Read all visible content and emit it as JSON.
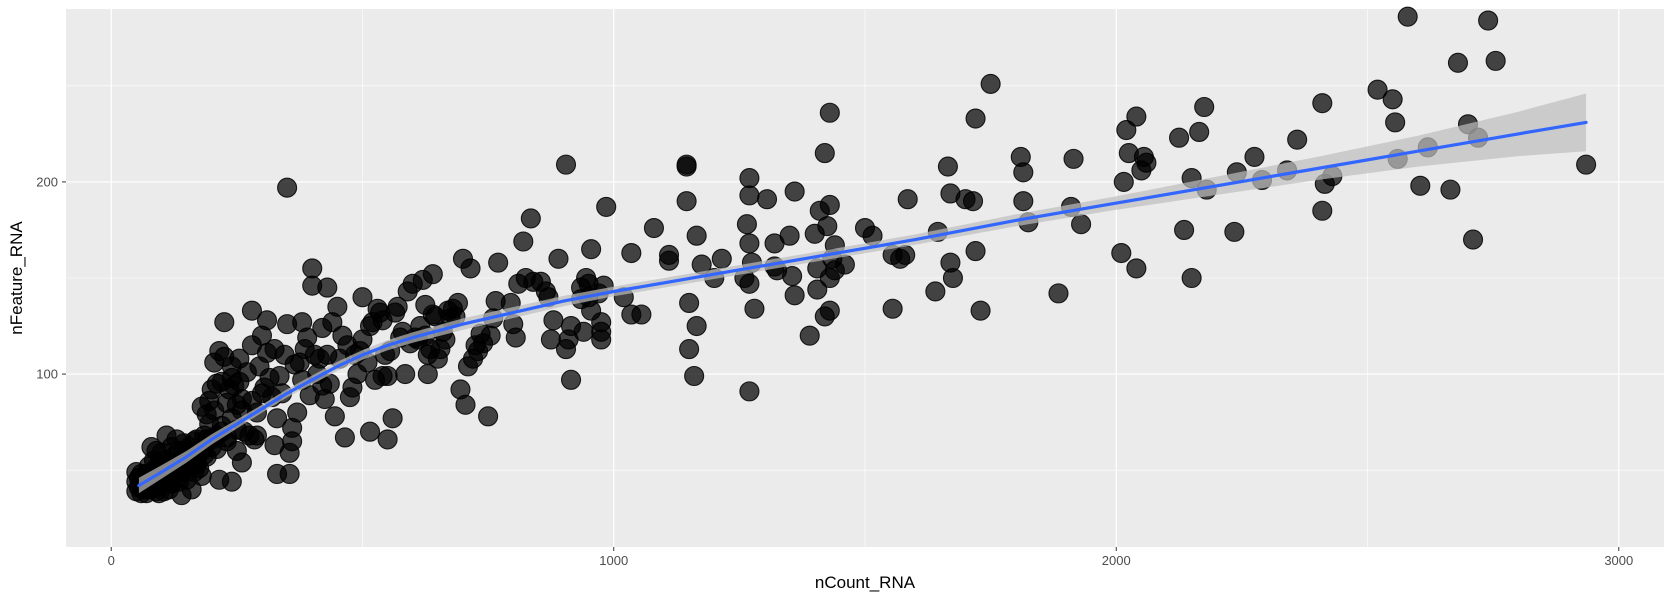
{
  "chart_data": {
    "type": "scatter",
    "title": "",
    "xlabel": "nCount_RNA",
    "ylabel": "nFeature_RNA",
    "xlim": [
      -90,
      3090
    ],
    "ylim": [
      10,
      290
    ],
    "x_ticks": [
      0,
      1000,
      2000,
      3000
    ],
    "y_ticks": [
      100,
      200
    ],
    "x_minor": [
      500,
      1500,
      2500
    ],
    "y_minor": [
      50,
      150,
      250
    ],
    "grid": true,
    "legend": "none",
    "colors": {
      "panel": "#EBEBEB",
      "grid": "#FFFFFF",
      "points": "#000000",
      "smooth_line": "#3366FF",
      "ribbon": "#BDBDBD"
    },
    "points": [
      [
        2580,
        286
      ],
      [
        2740,
        284
      ],
      [
        2680,
        262
      ],
      [
        2755,
        263
      ],
      [
        2520,
        248
      ],
      [
        2550,
        243
      ],
      [
        2555,
        231
      ],
      [
        2560,
        212
      ],
      [
        2620,
        218
      ],
      [
        2700,
        230
      ],
      [
        2720,
        223
      ],
      [
        2605,
        198
      ],
      [
        2665,
        196
      ],
      [
        2710,
        170
      ],
      [
        2935,
        209
      ],
      [
        2410,
        241
      ],
      [
        2360,
        222
      ],
      [
        2415,
        199
      ],
      [
        2430,
        203
      ],
      [
        2410,
        185
      ],
      [
        2235,
        174
      ],
      [
        2240,
        205
      ],
      [
        2275,
        213
      ],
      [
        2290,
        201
      ],
      [
        2340,
        206
      ],
      [
        2175,
        239
      ],
      [
        2165,
        226
      ],
      [
        2125,
        223
      ],
      [
        2150,
        202
      ],
      [
        2180,
        196
      ],
      [
        2135,
        175
      ],
      [
        2150,
        150
      ],
      [
        2040,
        234
      ],
      [
        2020,
        227
      ],
      [
        2025,
        215
      ],
      [
        2055,
        213
      ],
      [
        2060,
        210
      ],
      [
        2050,
        206
      ],
      [
        2015,
        200
      ],
      [
        2010,
        163
      ],
      [
        2040,
        155
      ],
      [
        1915,
        212
      ],
      [
        1910,
        187
      ],
      [
        1930,
        178
      ],
      [
        1885,
        142
      ],
      [
        1810,
        213
      ],
      [
        1815,
        205
      ],
      [
        1815,
        190
      ],
      [
        1825,
        179
      ],
      [
        1750,
        251
      ],
      [
        1720,
        233
      ],
      [
        1715,
        190
      ],
      [
        1700,
        191
      ],
      [
        1665,
        208
      ],
      [
        1670,
        194
      ],
      [
        1645,
        174
      ],
      [
        1640,
        143
      ],
      [
        1670,
        158
      ],
      [
        1675,
        150
      ],
      [
        1720,
        164
      ],
      [
        1730,
        133
      ],
      [
        1585,
        191
      ],
      [
        1555,
        162
      ],
      [
        1570,
        160
      ],
      [
        1580,
        162
      ],
      [
        1555,
        134
      ],
      [
        1500,
        176
      ],
      [
        1515,
        172
      ],
      [
        1460,
        157
      ],
      [
        1430,
        236
      ],
      [
        1420,
        215
      ],
      [
        1430,
        188
      ],
      [
        1425,
        177
      ],
      [
        1410,
        185
      ],
      [
        1440,
        167
      ],
      [
        1435,
        160
      ],
      [
        1440,
        154
      ],
      [
        1430,
        150
      ],
      [
        1420,
        130
      ],
      [
        1430,
        133
      ],
      [
        1400,
        173
      ],
      [
        1405,
        155
      ],
      [
        1405,
        144
      ],
      [
        1390,
        120
      ],
      [
        1360,
        195
      ],
      [
        1350,
        172
      ],
      [
        1355,
        151
      ],
      [
        1360,
        141
      ],
      [
        1320,
        168
      ],
      [
        1320,
        156
      ],
      [
        1325,
        154
      ],
      [
        1305,
        191
      ],
      [
        1270,
        202
      ],
      [
        1270,
        193
      ],
      [
        1265,
        178
      ],
      [
        1270,
        168
      ],
      [
        1275,
        158
      ],
      [
        1270,
        147
      ],
      [
        1260,
        150
      ],
      [
        1280,
        134
      ],
      [
        1270,
        91
      ],
      [
        1145,
        209
      ],
      [
        1145,
        208
      ],
      [
        1145,
        190
      ],
      [
        1165,
        172
      ],
      [
        1175,
        157
      ],
      [
        1150,
        137
      ],
      [
        1165,
        125
      ],
      [
        1150,
        113
      ],
      [
        1160,
        99
      ],
      [
        1110,
        162
      ],
      [
        1110,
        159
      ],
      [
        1080,
        176
      ],
      [
        1200,
        150
      ],
      [
        1215,
        160
      ],
      [
        1035,
        163
      ],
      [
        1020,
        140
      ],
      [
        1035,
        131
      ],
      [
        1055,
        131
      ],
      [
        985,
        187
      ],
      [
        980,
        146
      ],
      [
        970,
        142
      ],
      [
        975,
        127
      ],
      [
        975,
        118
      ],
      [
        975,
        122
      ],
      [
        955,
        165
      ],
      [
        945,
        150
      ],
      [
        950,
        147
      ],
      [
        950,
        140
      ],
      [
        955,
        133
      ],
      [
        935,
        145
      ],
      [
        935,
        139
      ],
      [
        940,
        122
      ],
      [
        905,
        209
      ],
      [
        915,
        97
      ],
      [
        915,
        125
      ],
      [
        910,
        118
      ],
      [
        905,
        113
      ],
      [
        890,
        160
      ],
      [
        870,
        140
      ],
      [
        880,
        128
      ],
      [
        875,
        118
      ],
      [
        865,
        143
      ],
      [
        855,
        148
      ],
      [
        835,
        181
      ],
      [
        840,
        148
      ],
      [
        825,
        150
      ],
      [
        820,
        169
      ],
      [
        810,
        147
      ],
      [
        805,
        119
      ],
      [
        800,
        126
      ],
      [
        795,
        137
      ],
      [
        770,
        158
      ],
      [
        765,
        138
      ],
      [
        760,
        129
      ],
      [
        755,
        120
      ],
      [
        750,
        78
      ],
      [
        740,
        116
      ],
      [
        735,
        121
      ],
      [
        730,
        112
      ],
      [
        725,
        115
      ],
      [
        720,
        108
      ],
      [
        715,
        155
      ],
      [
        710,
        104
      ],
      [
        705,
        84
      ],
      [
        700,
        160
      ],
      [
        695,
        92
      ],
      [
        690,
        137
      ],
      [
        685,
        130
      ],
      [
        680,
        134
      ],
      [
        675,
        129
      ],
      [
        670,
        133
      ],
      [
        665,
        118
      ],
      [
        660,
        122
      ],
      [
        655,
        113
      ],
      [
        650,
        108
      ],
      [
        645,
        130
      ],
      [
        640,
        131
      ],
      [
        640,
        152
      ],
      [
        635,
        113
      ],
      [
        630,
        110
      ],
      [
        630,
        100
      ],
      [
        625,
        136
      ],
      [
        625,
        120
      ],
      [
        620,
        149
      ],
      [
        615,
        125
      ],
      [
        610,
        118
      ],
      [
        605,
        119
      ],
      [
        600,
        147
      ],
      [
        595,
        116
      ],
      [
        590,
        143
      ],
      [
        585,
        100
      ],
      [
        580,
        122
      ],
      [
        575,
        119
      ],
      [
        570,
        135
      ],
      [
        565,
        132
      ],
      [
        560,
        77
      ],
      [
        555,
        112
      ],
      [
        550,
        66
      ],
      [
        550,
        99
      ],
      [
        545,
        110
      ],
      [
        540,
        99
      ],
      [
        540,
        128
      ],
      [
        535,
        132
      ],
      [
        530,
        134
      ],
      [
        525,
        97
      ],
      [
        520,
        127
      ],
      [
        515,
        70
      ],
      [
        515,
        125
      ],
      [
        510,
        106
      ],
      [
        500,
        140
      ],
      [
        500,
        118
      ],
      [
        495,
        112
      ],
      [
        490,
        100
      ],
      [
        485,
        110
      ],
      [
        480,
        93
      ],
      [
        475,
        88
      ],
      [
        470,
        115
      ],
      [
        465,
        67
      ],
      [
        460,
        120
      ],
      [
        455,
        108
      ],
      [
        450,
        135
      ],
      [
        445,
        78
      ],
      [
        440,
        127
      ],
      [
        435,
        95
      ],
      [
        430,
        110
      ],
      [
        430,
        145
      ],
      [
        425,
        87
      ],
      [
        420,
        94
      ],
      [
        420,
        124
      ],
      [
        415,
        108
      ],
      [
        410,
        100
      ],
      [
        405,
        110
      ],
      [
        400,
        146
      ],
      [
        400,
        155
      ],
      [
        395,
        89
      ],
      [
        390,
        119
      ],
      [
        385,
        113
      ],
      [
        380,
        127
      ],
      [
        380,
        97
      ],
      [
        375,
        106
      ],
      [
        370,
        80
      ],
      [
        365,
        105
      ],
      [
        360,
        72
      ],
      [
        360,
        65
      ],
      [
        355,
        59
      ],
      [
        355,
        48
      ],
      [
        350,
        126
      ],
      [
        350,
        197
      ],
      [
        345,
        110
      ],
      [
        340,
        90
      ],
      [
        335,
        99
      ],
      [
        330,
        77
      ],
      [
        330,
        48
      ],
      [
        325,
        113
      ],
      [
        325,
        63
      ],
      [
        320,
        88
      ],
      [
        315,
        98
      ],
      [
        310,
        111
      ],
      [
        310,
        128
      ],
      [
        305,
        93
      ],
      [
        300,
        120
      ],
      [
        295,
        104
      ],
      [
        290,
        80
      ],
      [
        290,
        68
      ],
      [
        285,
        66
      ],
      [
        280,
        133
      ],
      [
        280,
        115
      ],
      [
        275,
        68
      ],
      [
        270,
        101
      ],
      [
        265,
        70
      ],
      [
        260,
        87
      ],
      [
        260,
        54
      ],
      [
        255,
        108
      ],
      [
        255,
        96
      ],
      [
        250,
        60
      ],
      [
        250,
        84
      ],
      [
        245,
        94
      ],
      [
        240,
        98
      ],
      [
        240,
        104
      ],
      [
        240,
        44
      ],
      [
        235,
        92
      ],
      [
        230,
        67
      ],
      [
        230,
        85
      ],
      [
        225,
        127
      ],
      [
        225,
        109
      ],
      [
        220,
        70
      ],
      [
        220,
        96
      ],
      [
        215,
        112
      ],
      [
        215,
        45
      ],
      [
        210,
        68
      ],
      [
        210,
        95
      ],
      [
        205,
        81
      ],
      [
        205,
        106
      ],
      [
        200,
        62
      ],
      [
        200,
        92
      ],
      [
        195,
        74
      ],
      [
        195,
        86
      ],
      [
        190,
        66
      ],
      [
        190,
        79
      ],
      [
        185,
        58
      ],
      [
        185,
        68
      ],
      [
        180,
        47
      ],
      [
        180,
        83
      ],
      [
        175,
        51
      ],
      [
        175,
        61
      ],
      [
        170,
        66
      ],
      [
        170,
        56
      ],
      [
        165,
        65
      ],
      [
        165,
        49
      ],
      [
        160,
        40
      ],
      [
        160,
        60
      ],
      [
        155,
        62
      ],
      [
        155,
        52
      ],
      [
        150,
        58
      ],
      [
        150,
        45
      ],
      [
        145,
        64
      ],
      [
        140,
        37
      ],
      [
        140,
        56
      ],
      [
        135,
        60
      ],
      [
        135,
        44
      ],
      [
        130,
        52
      ],
      [
        130,
        66
      ],
      [
        125,
        48
      ],
      [
        125,
        57
      ],
      [
        120,
        43
      ],
      [
        120,
        62
      ],
      [
        115,
        52
      ],
      [
        115,
        40
      ],
      [
        110,
        47
      ],
      [
        110,
        68
      ],
      [
        105,
        55
      ],
      [
        105,
        39
      ],
      [
        100,
        46
      ],
      [
        100,
        59
      ],
      [
        100,
        50
      ],
      [
        95,
        44
      ],
      [
        95,
        38
      ],
      [
        95,
        53
      ],
      [
        90,
        48
      ],
      [
        90,
        60
      ],
      [
        90,
        39
      ],
      [
        85,
        44
      ],
      [
        85,
        50
      ],
      [
        85,
        55
      ],
      [
        80,
        41
      ],
      [
        80,
        47
      ],
      [
        80,
        62
      ],
      [
        75,
        40
      ],
      [
        75,
        45
      ],
      [
        75,
        52
      ],
      [
        70,
        38
      ],
      [
        70,
        42
      ],
      [
        70,
        48
      ],
      [
        65,
        40
      ],
      [
        65,
        45
      ],
      [
        60,
        38
      ],
      [
        60,
        43
      ],
      [
        60,
        48
      ],
      [
        55,
        41
      ],
      [
        55,
        46
      ],
      [
        50,
        39
      ],
      [
        50,
        44
      ],
      [
        50,
        49
      ],
      [
        90,
        42
      ],
      [
        110,
        44
      ],
      [
        130,
        46
      ],
      [
        150,
        50
      ],
      [
        170,
        53
      ],
      [
        190,
        57
      ],
      [
        210,
        61
      ],
      [
        230,
        65
      ],
      [
        250,
        71
      ],
      [
        140,
        49
      ],
      [
        120,
        45
      ],
      [
        100,
        42
      ],
      [
        160,
        55
      ],
      [
        180,
        60
      ],
      [
        200,
        66
      ],
      [
        220,
        73
      ],
      [
        240,
        77
      ],
      [
        260,
        81
      ],
      [
        280,
        86
      ],
      [
        300,
        90
      ]
    ],
    "smooth": [
      [
        55,
        42
      ],
      [
        100,
        49
      ],
      [
        150,
        57
      ],
      [
        200,
        66
      ],
      [
        250,
        74
      ],
      [
        300,
        82
      ],
      [
        350,
        90
      ],
      [
        400,
        97
      ],
      [
        450,
        104
      ],
      [
        500,
        110
      ],
      [
        550,
        115
      ],
      [
        600,
        119
      ],
      [
        700,
        126
      ],
      [
        800,
        132
      ],
      [
        900,
        138
      ],
      [
        1000,
        143
      ],
      [
        1200,
        152
      ],
      [
        1400,
        161
      ],
      [
        1600,
        170
      ],
      [
        1800,
        180
      ],
      [
        2000,
        189
      ],
      [
        2200,
        198
      ],
      [
        2400,
        207
      ],
      [
        2600,
        216
      ],
      [
        2800,
        225
      ],
      [
        2935,
        231
      ]
    ],
    "band_halfwidth": [
      [
        55,
        4
      ],
      [
        150,
        3
      ],
      [
        300,
        2
      ],
      [
        500,
        2.5
      ],
      [
        700,
        3
      ],
      [
        1000,
        2.5
      ],
      [
        1500,
        2.5
      ],
      [
        2000,
        3.5
      ],
      [
        2400,
        6
      ],
      [
        2700,
        9
      ],
      [
        2935,
        15
      ]
    ]
  }
}
